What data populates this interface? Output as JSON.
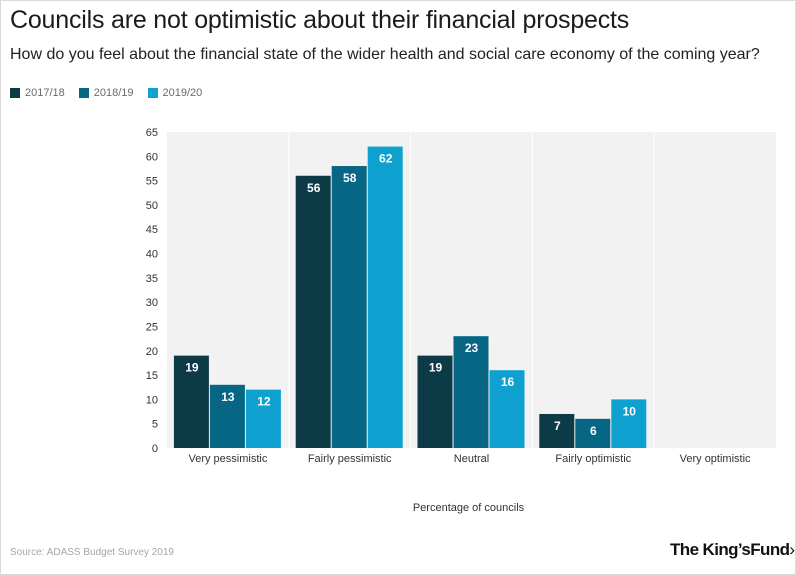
{
  "header": {
    "title": "Councils are not optimistic about their financial prospects",
    "subtitle": "How do you feel about the financial state of the wider health and social care economy of the coming year?"
  },
  "colors": {
    "series": [
      "#0d3a47",
      "#086685",
      "#0ea1cf"
    ],
    "plot_background": "#f2f2f2"
  },
  "chart_data": {
    "type": "bar",
    "categories": [
      "Very pessimistic",
      "Fairly pessimistic",
      "Neutral",
      "Fairly optimistic",
      "Very optimistic"
    ],
    "series": [
      {
        "name": "2017/18",
        "values": [
          19,
          56,
          19,
          7,
          0
        ]
      },
      {
        "name": "2018/19",
        "values": [
          13,
          58,
          23,
          6,
          0
        ]
      },
      {
        "name": "2019/20",
        "values": [
          12,
          62,
          16,
          10,
          0
        ]
      }
    ],
    "xlabel": "Percentage of councils",
    "ylabel": "",
    "ylim": [
      0,
      65
    ],
    "yticks": [
      0,
      5,
      10,
      15,
      20,
      25,
      30,
      35,
      40,
      45,
      50,
      55,
      60,
      65
    ],
    "legend": "top-left",
    "grid": true
  },
  "footer": {
    "source": "Source: ADASS Budget Survey 2019",
    "brand": "The King's Fund"
  }
}
